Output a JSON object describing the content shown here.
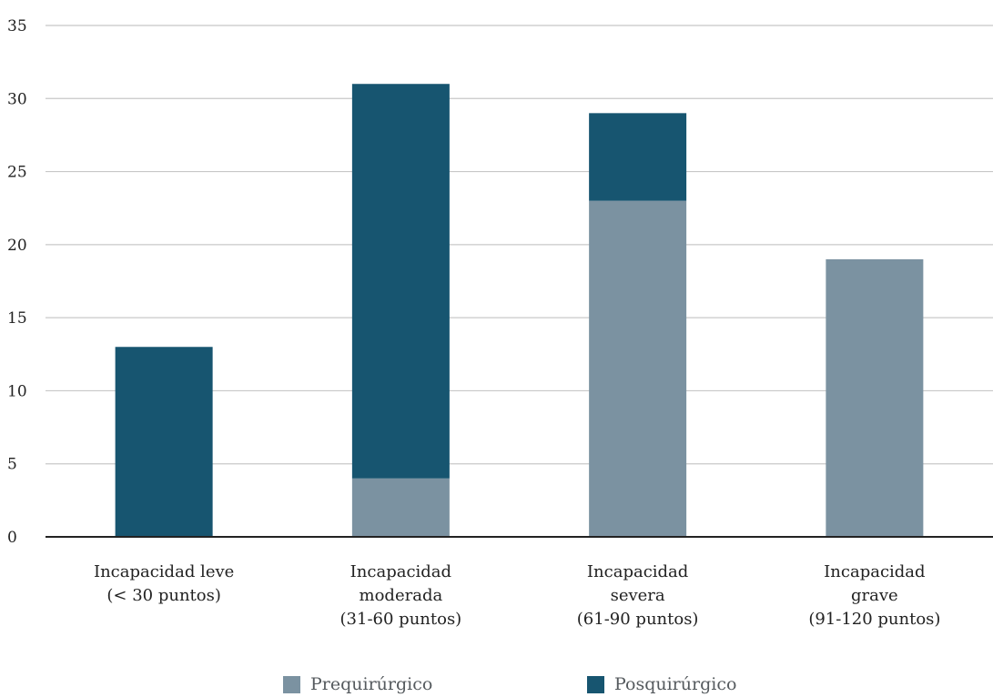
{
  "chart_data": {
    "type": "bar",
    "stacked": true,
    "categories": [
      [
        "Incapacidad leve",
        "(< 30 puntos)"
      ],
      [
        "Incapacidad",
        "moderada",
        "(31-60 puntos)"
      ],
      [
        "Incapacidad",
        "severa",
        "(61-90 puntos)"
      ],
      [
        "Incapacidad",
        "grave",
        "(91-120 puntos)"
      ]
    ],
    "series": [
      {
        "name": "Prequirúrgico",
        "color": "#7b92a1",
        "values": [
          0,
          4,
          23,
          19
        ]
      },
      {
        "name": "Posquirúrgico",
        "color": "#175570",
        "values": [
          13,
          27,
          6,
          0
        ]
      }
    ],
    "yticks": [
      "0",
      "5",
      "10",
      "15",
      "20",
      "25",
      "30",
      "35"
    ],
    "ylim": [
      0,
      35
    ],
    "grid": true,
    "legend_position": "bottom-center",
    "title": "",
    "xlabel": "",
    "ylabel": ""
  }
}
